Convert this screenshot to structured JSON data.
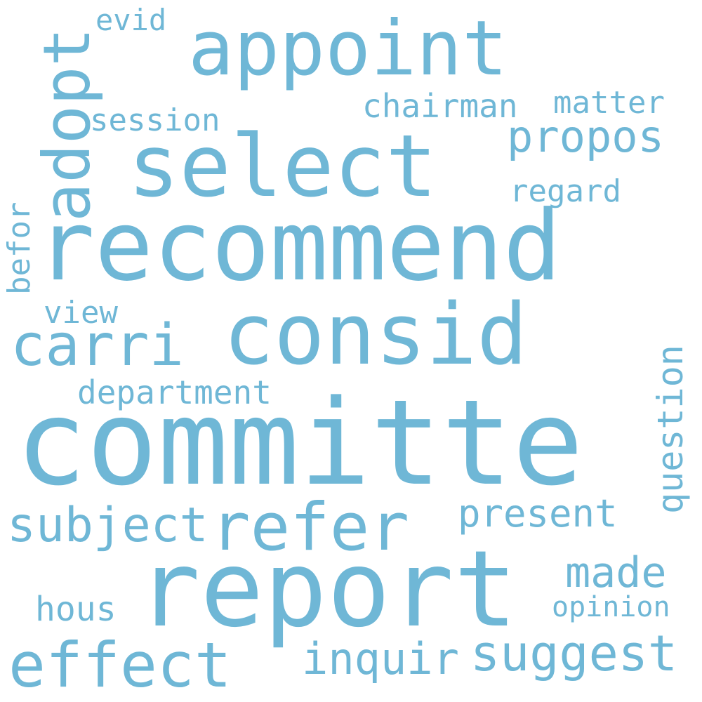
{
  "color": "#6fb7d6",
  "words": {
    "committe": "committe",
    "recommend": "recommend",
    "report": "report",
    "select": "select",
    "appoint": "appoint",
    "consid": "consid",
    "refer": "refer",
    "effect": "effect",
    "carri": "carri",
    "adopt": "adopt",
    "suggest": "suggest",
    "subject": "subject",
    "propos": "propos",
    "inquir": "inquir",
    "present": "present",
    "made": "made",
    "question": "question",
    "department": "department",
    "chairman": "chairman",
    "matter": "matter",
    "session": "session",
    "regard": "regard",
    "opinion": "opinion",
    "hous": "hous",
    "view": "view",
    "befor": "befor",
    "evid": "evid"
  }
}
